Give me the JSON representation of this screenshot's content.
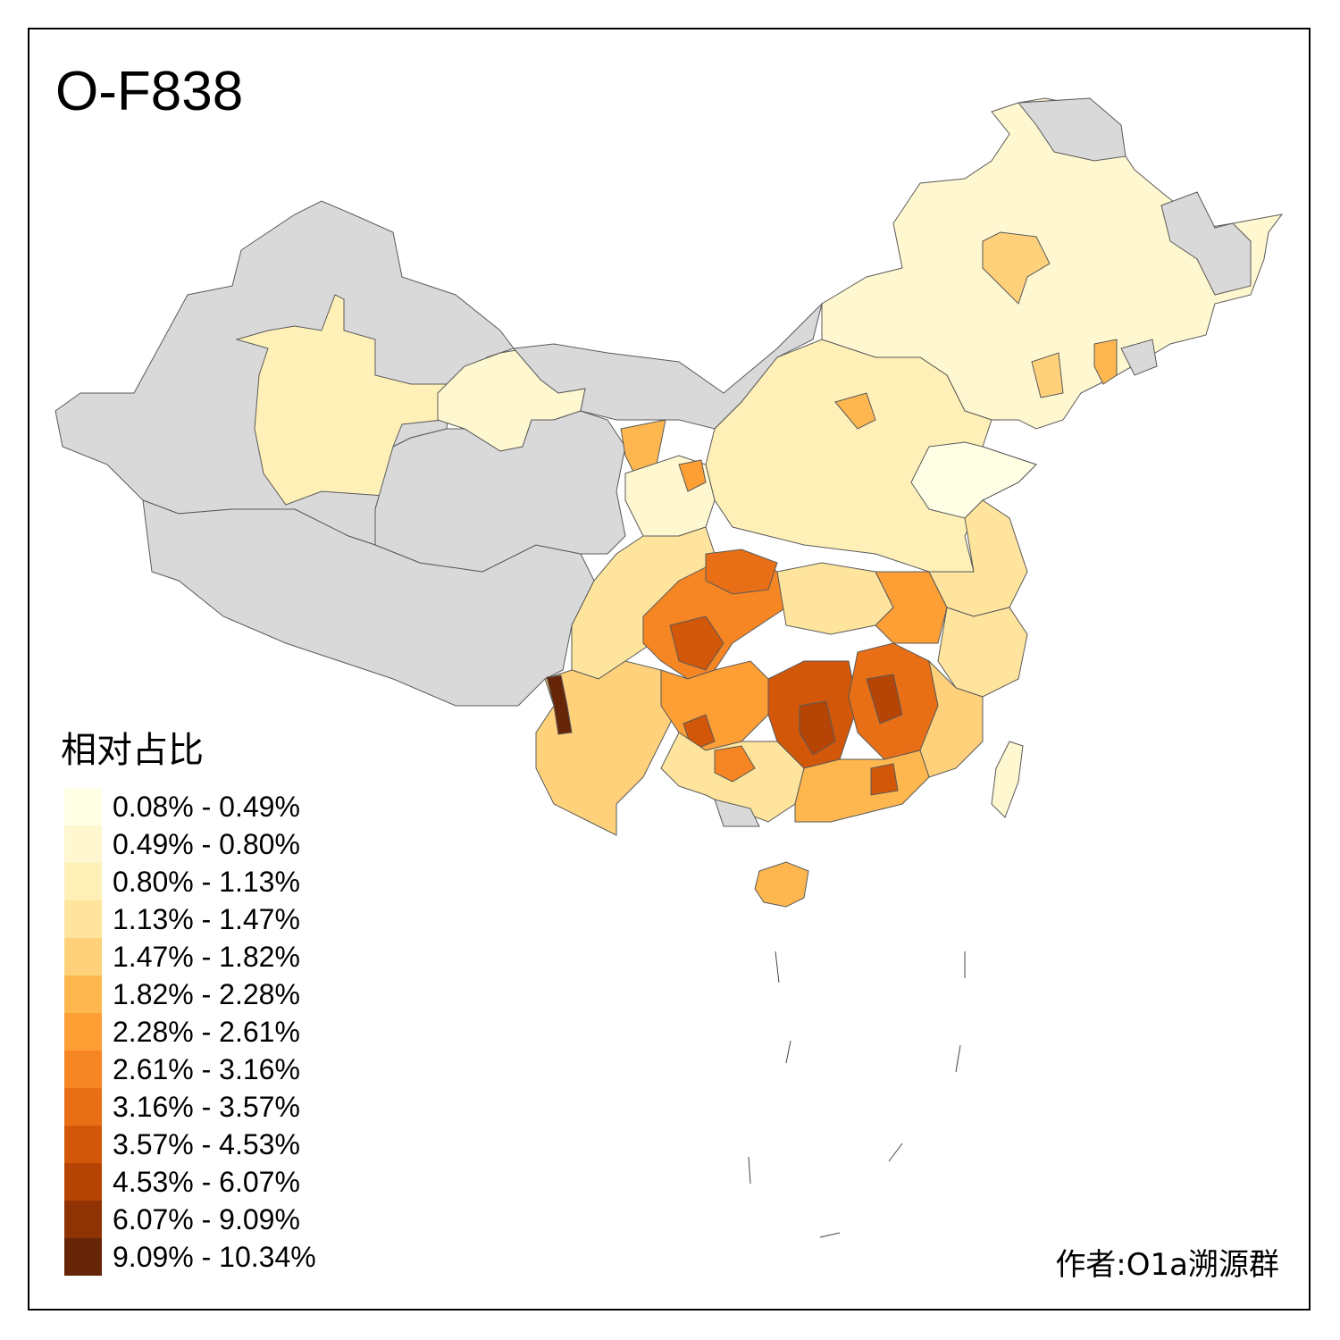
{
  "title": "O-F838",
  "legend": {
    "title": "相对占比",
    "bins": [
      {
        "label": "0.08% - 0.49%",
        "color": "#ffffe5"
      },
      {
        "label": "0.49% - 0.80%",
        "color": "#fff7cf"
      },
      {
        "label": "0.80% - 1.13%",
        "color": "#fff0b8"
      },
      {
        "label": "1.13% - 1.47%",
        "color": "#fee49c"
      },
      {
        "label": "1.47% - 1.82%",
        "color": "#fed17a"
      },
      {
        "label": "1.82% - 2.28%",
        "color": "#feb74f"
      },
      {
        "label": "2.28% - 2.61%",
        "color": "#fd9f35"
      },
      {
        "label": "2.61% - 3.16%",
        "color": "#f58623"
      },
      {
        "label": "3.16% - 3.57%",
        "color": "#e86f15"
      },
      {
        "label": "3.57% - 4.53%",
        "color": "#d35709"
      },
      {
        "label": "4.53% - 6.07%",
        "color": "#b64404"
      },
      {
        "label": "6.07% - 9.09%",
        "color": "#8f3304"
      },
      {
        "label": "9.09% - 10.34%",
        "color": "#662506"
      }
    ]
  },
  "no_data_color": "#d9d9d9",
  "author": "作者:O1a溯源群"
}
